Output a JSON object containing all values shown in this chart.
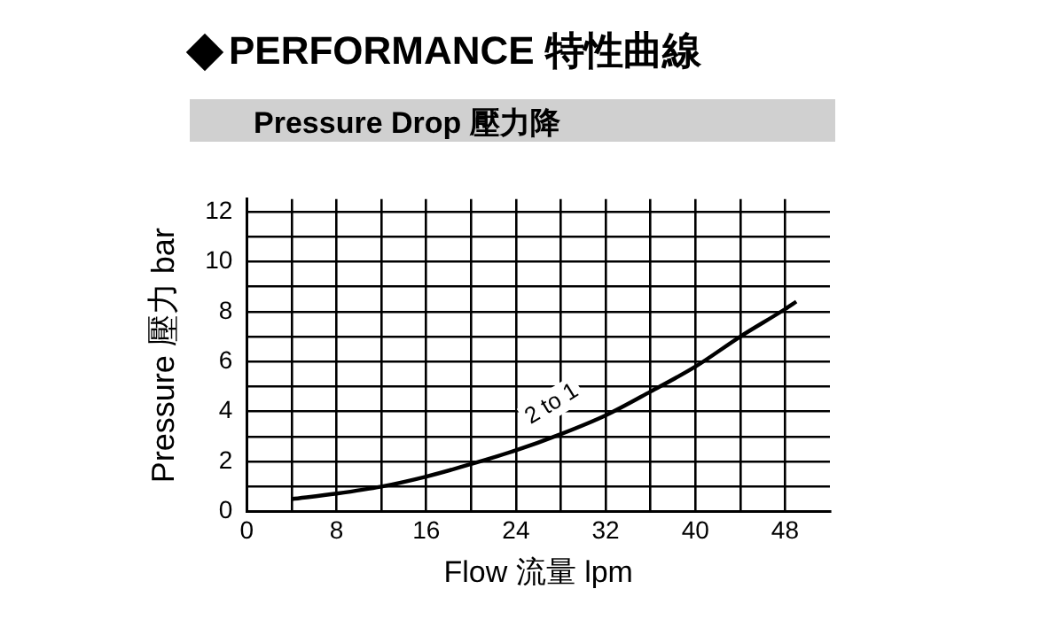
{
  "chart_data": {
    "type": "line",
    "title": "PERFORMANCE 特性曲線",
    "subtitle": "Pressure Drop 壓力降",
    "xlabel": "Flow 流量 lpm",
    "ylabel": "Pressure 壓力 bar",
    "x": [
      4,
      8,
      12,
      16,
      20,
      24,
      28,
      32,
      36,
      40,
      44,
      48,
      49
    ],
    "series": [
      {
        "color": "#000000",
        "values": [
          0.5,
          0.72,
          1.0,
          1.4,
          1.9,
          2.45,
          3.1,
          3.85,
          4.8,
          5.8,
          7.0,
          8.1,
          8.4
        ]
      }
    ],
    "xlim": [
      0,
      52
    ],
    "xticks": [
      0,
      {
        "value": 4,
        "label": null
      },
      8,
      {
        "value": 12,
        "label": null
      },
      16,
      {
        "value": 20,
        "label": null
      },
      24,
      {
        "value": 28,
        "label": null
      },
      32,
      {
        "value": 36,
        "label": null
      },
      40,
      {
        "value": 44,
        "label": null
      },
      48
    ],
    "ylim": [
      0,
      12.5
    ],
    "yticks": [
      0,
      {
        "value": 1,
        "label": null
      },
      2,
      {
        "value": 3,
        "label": null
      },
      4,
      {
        "value": 5,
        "label": null
      },
      6,
      {
        "value": 7,
        "label": null
      },
      8,
      {
        "value": 9,
        "label": null
      },
      10,
      {
        "value": 11,
        "label": null
      },
      12
    ],
    "annotations": [
      {
        "text": "2 to 1",
        "x": 27.2,
        "y": 4.3
      }
    ],
    "grid": true,
    "legend": false,
    "marker": "none",
    "line_style": "solid"
  }
}
